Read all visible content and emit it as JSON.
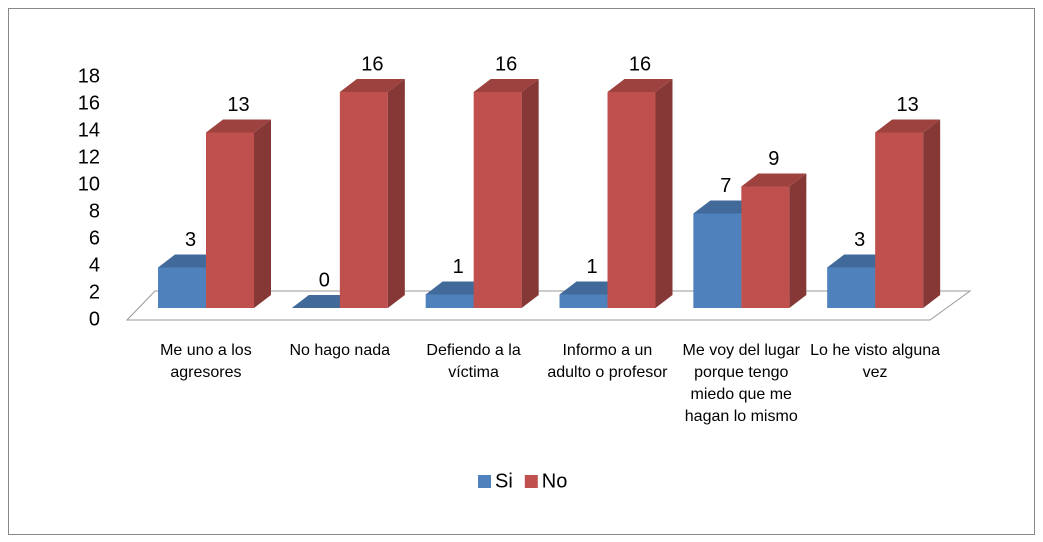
{
  "chart_data": {
    "type": "bar3d",
    "categories": [
      "Me uno a los agresores",
      "No hago nada",
      "Defiendo a la víctima",
      "Informo a un adulto o profesor",
      "Me voy del lugar porque tengo miedo que me hagan lo mismo",
      "Lo he visto alguna vez"
    ],
    "series": [
      {
        "name": "Si",
        "color": "#4f81bd",
        "values": [
          3,
          0,
          1,
          1,
          7,
          3
        ]
      },
      {
        "name": "No",
        "color": "#c0504d",
        "values": [
          13,
          16,
          16,
          16,
          9,
          13
        ]
      }
    ],
    "ylim": [
      0,
      18
    ],
    "yticks": [
      0,
      2,
      4,
      6,
      8,
      10,
      12,
      14,
      16,
      18
    ],
    "legend": "bottom"
  }
}
